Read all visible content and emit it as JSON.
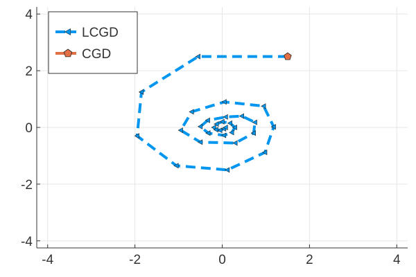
{
  "chart_data": {
    "type": "line",
    "title": "",
    "xlabel": "",
    "ylabel": "",
    "xlim": [
      -4.25,
      4.25
    ],
    "ylim": [
      -4.25,
      4.25
    ],
    "xticks": [
      -4,
      -2,
      0,
      2,
      4
    ],
    "yticks": [
      -4,
      -2,
      0,
      2,
      4
    ],
    "xtick_labels": [
      "-4",
      "-2",
      "0",
      "2",
      "4"
    ],
    "ytick_labels": [
      "-4",
      "-2",
      "0",
      "2",
      "4"
    ],
    "grid": true,
    "legend_position": "top-left",
    "series": [
      {
        "name": "LCGD",
        "color": "#0096f0",
        "line_style": "dashed",
        "marker": "left-triangle",
        "x": [
          1.5,
          -0.55,
          -1.85,
          -1.95,
          -1.05,
          0.12,
          0.98,
          1.18,
          0.95,
          0.05,
          -0.7,
          -0.95,
          -0.5,
          0.3,
          0.72,
          0.75,
          0.45,
          0.08,
          -0.33,
          -0.5,
          -0.32,
          0.04,
          0.22,
          0.29,
          0.18,
          0.0,
          -0.13,
          -0.19,
          -0.14,
          -0.05,
          0.04,
          0.08
        ],
        "y": [
          2.5,
          2.5,
          1.25,
          -0.3,
          -1.35,
          -1.5,
          -0.88,
          0.02,
          0.75,
          0.9,
          0.55,
          -0.1,
          -0.52,
          -0.55,
          -0.2,
          0.18,
          0.4,
          0.37,
          0.25,
          0.03,
          -0.2,
          -0.28,
          -0.18,
          0.0,
          0.15,
          0.2,
          0.12,
          0.0,
          -0.08,
          -0.1,
          -0.05,
          0.0
        ]
      },
      {
        "name": "CGD",
        "color": "#e26f46",
        "line_style": "solid",
        "marker": "pentagon",
        "x": [
          1.5
        ],
        "y": [
          2.5
        ]
      }
    ]
  }
}
